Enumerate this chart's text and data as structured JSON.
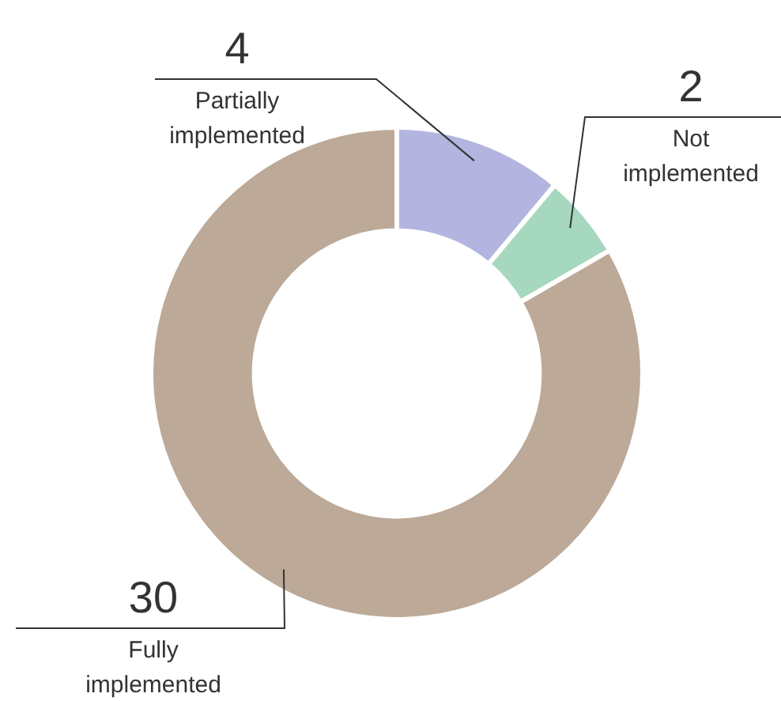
{
  "chart_data": {
    "type": "donut",
    "categories": [
      "Partially implemented",
      "Not implemented",
      "Fully implemented"
    ],
    "values": [
      4,
      2,
      30
    ],
    "colors": [
      "#b3b5e0",
      "#a6d7bf",
      "#bca997"
    ],
    "data_labels": true,
    "legend": false
  }
}
